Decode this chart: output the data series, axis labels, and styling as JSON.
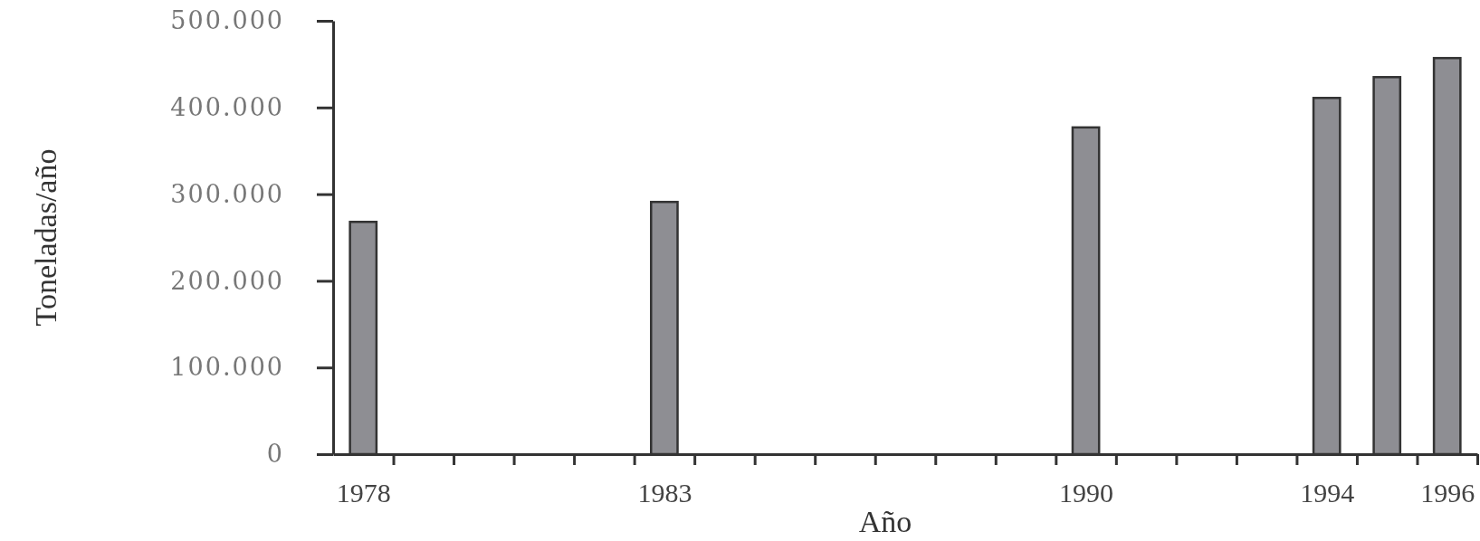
{
  "chart_data": {
    "type": "bar",
    "xlabel": "Año",
    "ylabel": "Toneladas/año",
    "x": [
      1978,
      1983,
      1990,
      1994,
      1995,
      1996
    ],
    "values": [
      268000,
      291000,
      377000,
      411000,
      435000,
      457000
    ],
    "color": "#8e8e93",
    "xlim": [
      1977.5,
      1996.5
    ],
    "xticks": [
      1978,
      {
        "value": 1978.5,
        "label": null
      },
      {
        "value": 1979.5,
        "label": null
      },
      {
        "value": 1980.5,
        "label": null
      },
      {
        "value": 1981.5,
        "label": null
      },
      {
        "value": 1982.5,
        "label": null
      },
      1983,
      {
        "value": 1983.5,
        "label": null
      },
      {
        "value": 1984.5,
        "label": null
      },
      {
        "value": 1985.5,
        "label": null
      },
      {
        "value": 1986.5,
        "label": null
      },
      {
        "value": 1987.5,
        "label": null
      },
      {
        "value": 1988.5,
        "label": null
      },
      {
        "value": 1989.5,
        "label": null
      },
      1990,
      {
        "value": 1990.5,
        "label": null
      },
      {
        "value": 1991.5,
        "label": null
      },
      {
        "value": 1992.5,
        "label": null
      },
      {
        "value": 1993.5,
        "label": null
      },
      1994,
      {
        "value": 1994.5,
        "label": null
      },
      {
        "value": 1995.5,
        "label": null
      },
      1996,
      {
        "value": 1996.5,
        "label": null
      }
    ],
    "ylim": [
      0,
      500000
    ],
    "yticks": [
      0,
      {
        "value": 100000,
        "label": "100.000"
      },
      {
        "value": 200000,
        "label": "200.000"
      },
      {
        "value": 300000,
        "label": "300.000"
      },
      {
        "value": 400000,
        "label": "400.000"
      },
      {
        "value": 500000,
        "label": "500.000"
      }
    ],
    "grid": false
  }
}
